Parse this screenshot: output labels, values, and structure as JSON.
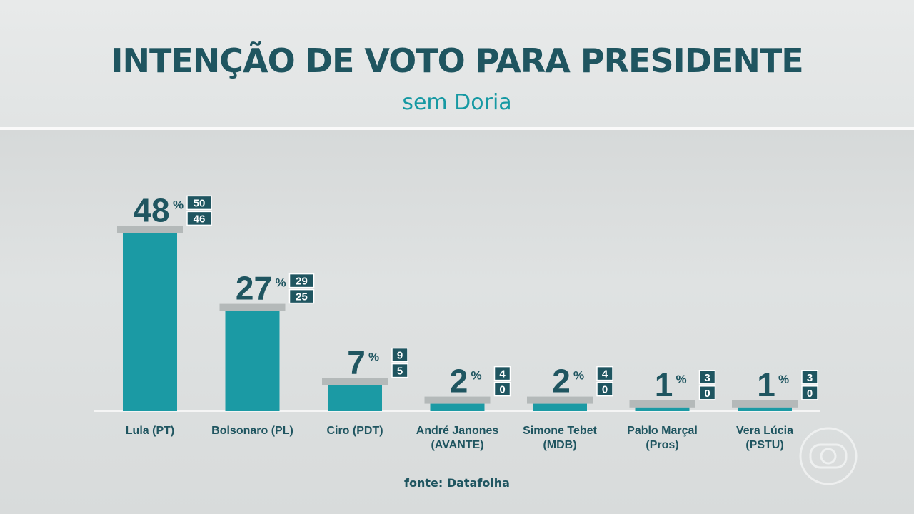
{
  "header": {
    "title": "INTENÇÃO DE VOTO PARA PRESIDENTE",
    "subtitle": "sem Doria"
  },
  "footer": {
    "source": "fonte: Datafolha"
  },
  "colors": {
    "bar": "#1b9aa4",
    "cap": "#b4b9b9",
    "value_text": "#1f5560",
    "badge_bg": "#1f5560",
    "badge_text": "#ffffff",
    "label_text": "#1f5560",
    "baseline": "#f5f5f5"
  },
  "chart_data": {
    "type": "bar",
    "title": "INTENÇÃO DE VOTO PARA PRESIDENTE",
    "subtitle": "sem Doria",
    "unit": "%",
    "categories": [
      [
        "Lula (PT)"
      ],
      [
        "Bolsonaro (PL)"
      ],
      [
        "Ciro (PDT)"
      ],
      [
        "André Janones",
        "(AVANTE)"
      ],
      [
        "Simone Tebet",
        "(MDB)"
      ],
      [
        "Pablo Marçal",
        "(Pros)"
      ],
      [
        "Vera Lúcia",
        "(PSTU)"
      ]
    ],
    "values": [
      48,
      27,
      7,
      2,
      2,
      1,
      1
    ],
    "upper": [
      50,
      29,
      9,
      4,
      4,
      3,
      3
    ],
    "lower": [
      46,
      25,
      5,
      0,
      0,
      0,
      0
    ],
    "ylim": [
      0,
      50
    ],
    "grid": false,
    "legend": "none"
  }
}
